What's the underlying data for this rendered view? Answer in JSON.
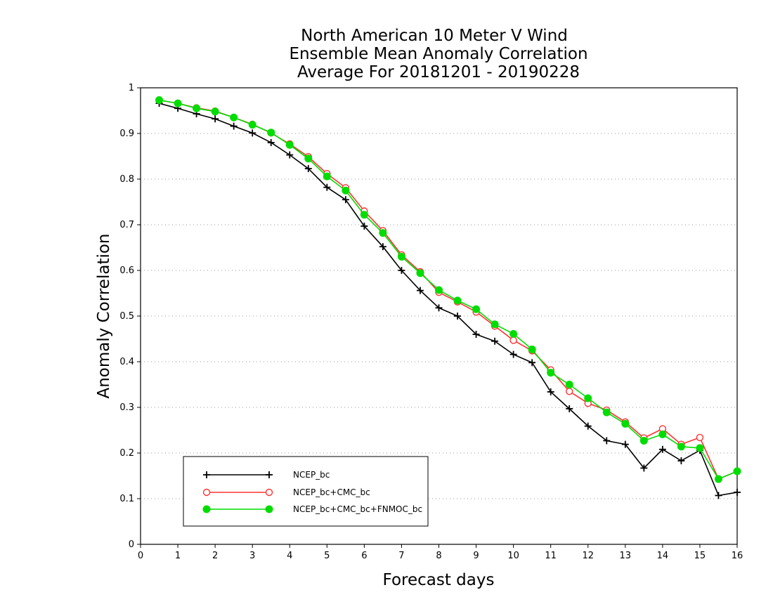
{
  "chart_data": {
    "type": "line",
    "title_lines": [
      "North American 10 Meter V Wind",
      "Ensemble Mean Anomaly Correlation",
      "Average For 20181201 - 20190228"
    ],
    "xlabel": "Forecast days",
    "ylabel": "Anomaly Correlation",
    "xlim": [
      0,
      16
    ],
    "ylim": [
      0,
      1
    ],
    "xticks": [
      0,
      1,
      2,
      3,
      4,
      5,
      6,
      7,
      8,
      9,
      10,
      11,
      12,
      13,
      14,
      15,
      16
    ],
    "yticks": [
      0,
      0.1,
      0.2,
      0.3,
      0.4,
      0.5,
      0.6,
      0.7,
      0.8,
      0.9,
      1
    ],
    "ytick_labels": [
      "0",
      "0.1",
      "0.2",
      "0.3",
      "0.4",
      "0.5",
      "0.6",
      "0.7",
      "0.8",
      "0.9",
      "1"
    ],
    "grid": "horizontal dotted",
    "legend_position": "bottom-left",
    "x": [
      0.5,
      1,
      1.5,
      2,
      2.5,
      3,
      3.5,
      4,
      4.5,
      5,
      5.5,
      6,
      6.5,
      7,
      7.5,
      8,
      8.5,
      9,
      9.5,
      10,
      10.5,
      11,
      11.5,
      12,
      12.5,
      13,
      13.5,
      14,
      14.5,
      15,
      15.5,
      16
    ],
    "series": [
      {
        "name": "NCEP_bc",
        "color": "#000000",
        "marker": "plus",
        "values": [
          0.966,
          0.955,
          0.943,
          0.932,
          0.916,
          0.901,
          0.88,
          0.853,
          0.823,
          0.782,
          0.755,
          0.697,
          0.652,
          0.6,
          0.556,
          0.518,
          0.5,
          0.46,
          0.445,
          0.416,
          0.398,
          0.334,
          0.297,
          0.259,
          0.227,
          0.219,
          0.167,
          0.208,
          0.183,
          0.206,
          0.107,
          0.114
        ]
      },
      {
        "name": "NCEP_bc+CMC_bc",
        "color": "#ff3333",
        "marker": "open-circle",
        "values": [
          0.973,
          0.966,
          0.956,
          0.949,
          0.935,
          0.92,
          0.901,
          0.877,
          0.849,
          0.812,
          0.781,
          0.73,
          0.687,
          0.634,
          0.597,
          0.552,
          0.531,
          0.509,
          0.478,
          0.447,
          0.424,
          0.382,
          0.335,
          0.309,
          0.294,
          0.268,
          0.233,
          0.253,
          0.219,
          0.234,
          0.143,
          0.16
        ]
      },
      {
        "name": "NCEP_bc+CMC_bc+FNMOC_bc",
        "color": "#00dd00",
        "marker": "filled-circle",
        "values": [
          0.973,
          0.966,
          0.955,
          0.948,
          0.935,
          0.919,
          0.902,
          0.875,
          0.845,
          0.806,
          0.775,
          0.722,
          0.682,
          0.63,
          0.594,
          0.557,
          0.534,
          0.515,
          0.482,
          0.461,
          0.427,
          0.376,
          0.35,
          0.32,
          0.289,
          0.264,
          0.227,
          0.241,
          0.214,
          0.211,
          0.143,
          0.16
        ]
      }
    ]
  }
}
